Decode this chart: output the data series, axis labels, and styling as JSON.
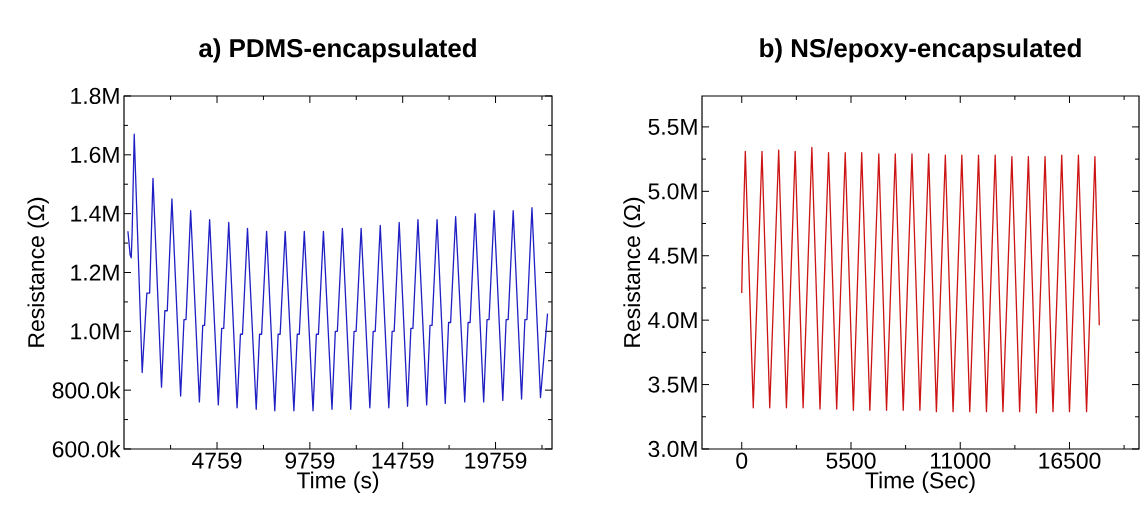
{
  "chart_data": [
    {
      "type": "line",
      "title": "a) PDMS-encapsulated",
      "xlabel": "Time (s)",
      "ylabel": "Resistance (Ω)",
      "xlim": [
        -250,
        22800
      ],
      "ylim": [
        600000,
        1800000
      ],
      "xticks": [
        4759,
        9759,
        14759,
        19759
      ],
      "yticks": [
        {
          "value": 600000,
          "label": "600.0k"
        },
        {
          "value": 800000,
          "label": "800.0k"
        },
        {
          "value": 1000000,
          "label": "1.0M"
        },
        {
          "value": 1200000,
          "label": "1.2M"
        },
        {
          "value": 1400000,
          "label": "1.4M"
        },
        {
          "value": 1600000,
          "label": "1.6M"
        },
        {
          "value": 1800000,
          "label": "1.8M"
        }
      ],
      "x": [
        -40,
        80,
        140,
        190,
        300,
        730,
        980,
        1130,
        1310,
        1770,
        1950,
        2080,
        2330,
        2800,
        2980,
        3090,
        3340,
        3810,
        3990,
        4090,
        4360,
        4830,
        5010,
        5120,
        5390,
        5840,
        6020,
        6130,
        6400,
        6870,
        7050,
        7160,
        7430,
        7870,
        8050,
        8160,
        8430,
        8900,
        9080,
        9190,
        9460,
        9930,
        10110,
        10220,
        10490,
        10950,
        11130,
        11240,
        11510,
        11960,
        12140,
        12250,
        12520,
        12990,
        13170,
        13280,
        13550,
        14010,
        14190,
        14300,
        14570,
        15020,
        15200,
        15310,
        15580,
        16050,
        16230,
        16340,
        16610,
        17050,
        17230,
        17340,
        17610,
        18100,
        18280,
        18390,
        18660,
        19120,
        19300,
        19410,
        19680,
        20150,
        20330,
        20440,
        20710,
        21160,
        21340,
        21450,
        21720,
        22180,
        22560
      ],
      "series": [
        {
          "color": "#1f1fc4",
          "values": [
            1340000,
            1260000,
            1250000,
            1340000,
            1670000,
            860000,
            1130000,
            1130000,
            1520000,
            810000,
            1070000,
            1070000,
            1450000,
            780000,
            1040000,
            1040000,
            1410000,
            760000,
            1020000,
            1020000,
            1380000,
            750000,
            1010000,
            1010000,
            1370000,
            740000,
            990000,
            990000,
            1350000,
            735000,
            990000,
            990000,
            1340000,
            730000,
            990000,
            990000,
            1340000,
            730000,
            990000,
            990000,
            1340000,
            730000,
            990000,
            990000,
            1340000,
            735000,
            1000000,
            1000000,
            1350000,
            735000,
            1000000,
            1000000,
            1350000,
            740000,
            1000000,
            1000000,
            1360000,
            740000,
            1000000,
            1000000,
            1370000,
            745000,
            1010000,
            1010000,
            1380000,
            750000,
            1020000,
            1020000,
            1380000,
            755000,
            1030000,
            1030000,
            1390000,
            760000,
            1030000,
            1030000,
            1400000,
            760000,
            1040000,
            1040000,
            1410000,
            765000,
            1040000,
            1040000,
            1410000,
            770000,
            1040000,
            1040000,
            1420000,
            775000,
            1060000
          ]
        }
      ]
    },
    {
      "type": "line",
      "title": "b) NS/epoxy-encapsulated",
      "xlabel": "Time (Sec)",
      "ylabel": "Resistance (Ω)",
      "xlim": [
        -2000,
        20000
      ],
      "ylim": [
        3000000,
        5740000
      ],
      "xticks": [
        0,
        5500,
        11000,
        16500
      ],
      "yticks": [
        {
          "value": 3000000,
          "label": "3.0M"
        },
        {
          "value": 3500000,
          "label": "3.5M"
        },
        {
          "value": 4000000,
          "label": "4.0M"
        },
        {
          "value": 4500000,
          "label": "4.5M"
        },
        {
          "value": 5000000,
          "label": "5.0M"
        },
        {
          "value": 5500000,
          "label": "5.5M"
        }
      ],
      "x": [
        0,
        30,
        180,
        580,
        1020,
        1410,
        1860,
        2250,
        2690,
        3090,
        3530,
        3940,
        4370,
        4780,
        5210,
        5620,
        6040,
        6450,
        6900,
        7290,
        7730,
        8130,
        8570,
        8970,
        9410,
        9800,
        10250,
        10640,
        11080,
        11480,
        11920,
        12320,
        12760,
        13150,
        13600,
        13990,
        14430,
        14830,
        15270,
        15670,
        16110,
        16500,
        16950,
        17360,
        17780,
        18000
      ],
      "series": [
        {
          "color": "#cc1414",
          "values": [
            4210000,
            4470000,
            5310000,
            3320000,
            5310000,
            3320000,
            5320000,
            3320000,
            5310000,
            3320000,
            5340000,
            3310000,
            5300000,
            3310000,
            5300000,
            3300000,
            5300000,
            3300000,
            5290000,
            3300000,
            5290000,
            3300000,
            5290000,
            3300000,
            5290000,
            3290000,
            5280000,
            3290000,
            5280000,
            3290000,
            5280000,
            3290000,
            5280000,
            3290000,
            5270000,
            3290000,
            5270000,
            3280000,
            5270000,
            3290000,
            5280000,
            3290000,
            5280000,
            3290000,
            5270000,
            3960000
          ]
        }
      ]
    }
  ]
}
